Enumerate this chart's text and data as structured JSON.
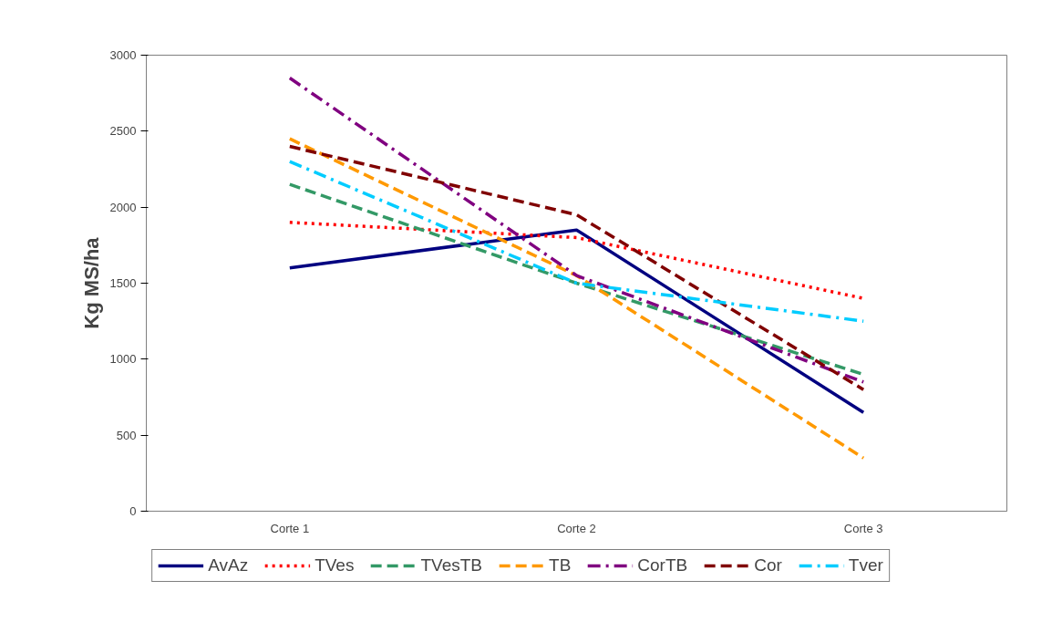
{
  "chart_data": {
    "type": "line",
    "ylabel": "Kg MS/ha",
    "categories": [
      "Corte 1",
      "Corte 2",
      "Corte 3"
    ],
    "ylim": [
      0,
      3000
    ],
    "yticks": [
      0,
      500,
      1000,
      1500,
      2000,
      2500,
      3000
    ],
    "grid": false,
    "legend": "bottom",
    "marker": "none",
    "series": [
      {
        "name": "AvAz",
        "color": "#000080",
        "line_style": "solid",
        "values": [
          1600,
          1850,
          650
        ]
      },
      {
        "name": "TVes",
        "color": "#ff0000",
        "line_style": "dotted",
        "values": [
          1900,
          1800,
          1400
        ]
      },
      {
        "name": "TVesTB",
        "color": "#339966",
        "line_style": "dashed",
        "values": [
          2150,
          1500,
          900
        ]
      },
      {
        "name": "TB",
        "color": "#ff9900",
        "line_style": "dashed",
        "values": [
          2450,
          1550,
          350
        ]
      },
      {
        "name": "CorTB",
        "color": "#800080",
        "line_style": "dashdot",
        "values": [
          2850,
          1550,
          850
        ]
      },
      {
        "name": "Cor",
        "color": "#800000",
        "line_style": "dashed",
        "values": [
          2400,
          1950,
          800
        ]
      },
      {
        "name": "Tver",
        "color": "#00ccff",
        "line_style": "dashdot",
        "values": [
          2300,
          1500,
          1250
        ]
      }
    ]
  }
}
